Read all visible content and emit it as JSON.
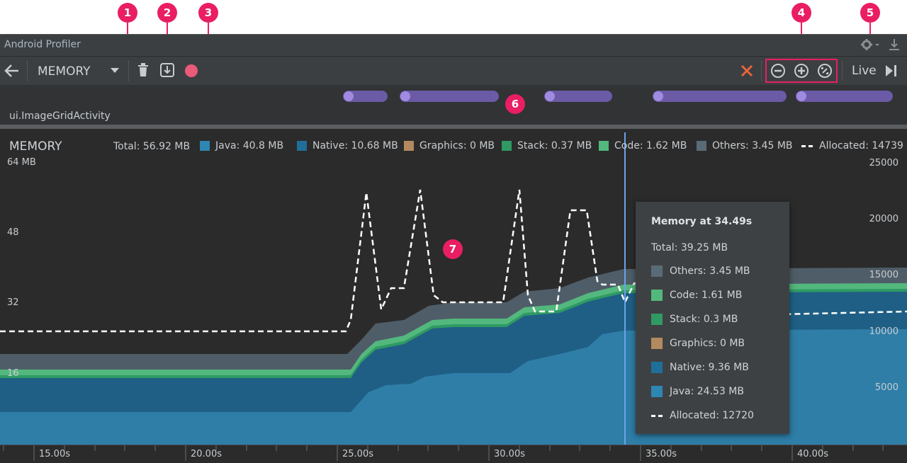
{
  "callouts": [
    "1",
    "2",
    "3",
    "4",
    "5",
    "6",
    "7"
  ],
  "window": {
    "title": "Android Profiler"
  },
  "toolbar": {
    "profiler_select": "MEMORY",
    "live_label": "Live"
  },
  "events": {
    "activity_label": "ui.ImageGridActivity"
  },
  "memory": {
    "title": "MEMORY",
    "total": "Total: 56.92 MB",
    "legend": [
      {
        "label": "Java:  40.8 MB",
        "color": "#2e86b3"
      },
      {
        "label": "Native: 10.68 MB",
        "color": "#1f6f9a"
      },
      {
        "label": "Graphics: 0 MB",
        "color": "#b38a5f"
      },
      {
        "label": "Stack: 0.37 MB",
        "color": "#2f9a63"
      },
      {
        "label": "Code: 1.62 MB",
        "color": "#53b87d"
      },
      {
        "label": "Others: 3.45 MB",
        "color": "#5a6b78"
      },
      {
        "label": "Allocated: 14739",
        "color": "#ffffff"
      }
    ],
    "left_axis": [
      "64 MB",
      "48",
      "32",
      "16"
    ],
    "right_axis": [
      "25000",
      "20000",
      "15000",
      "10000",
      "5000"
    ],
    "time_axis": [
      "15.00s",
      "20.00s",
      "25.00s",
      "30.00s",
      "35.00s",
      "40.00s"
    ]
  },
  "tooltip": {
    "title": "Memory at 34.49s",
    "total": "Total: 39.25 MB",
    "rows": [
      {
        "label": "Others: 3.45 MB",
        "color": "#5a6b78"
      },
      {
        "label": "Code: 1.61 MB",
        "color": "#53b87d"
      },
      {
        "label": "Stack: 0.3 MB",
        "color": "#2f9a63"
      },
      {
        "label": "Graphics: 0 MB",
        "color": "#b38a5f"
      },
      {
        "label": "Native: 9.36 MB",
        "color": "#1f6f9a"
      },
      {
        "label": "Java: 24.53 MB",
        "color": "#2e86b3"
      },
      {
        "label": "Allocated: 12720",
        "color": "#ffffff"
      }
    ]
  }
}
